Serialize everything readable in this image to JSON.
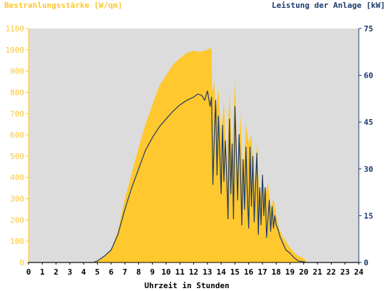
{
  "chart_data": {
    "type": "area",
    "title": "",
    "left_axis_label": "Bestrahlungsstärke [W/qm]",
    "right_axis_label": "Leistung der Anlage [kW]",
    "xlabel": "Uhrzeit in Stunden",
    "xlim": [
      0,
      24
    ],
    "x_ticks": [
      "0",
      "1",
      "2",
      "3",
      "4",
      "5",
      "6",
      "7",
      "8",
      "9",
      "10",
      "11",
      "12",
      "13",
      "14",
      "15",
      "16",
      "17",
      "18",
      "19",
      "20",
      "21",
      "22",
      "23",
      "24"
    ],
    "left_ylim": [
      0,
      1100
    ],
    "left_ticks": [
      "0",
      "100",
      "200",
      "300",
      "400",
      "500",
      "600",
      "700",
      "800",
      "900",
      "1000",
      "1100"
    ],
    "right_ylim": [
      0,
      75
    ],
    "right_ticks": [
      "0",
      "15",
      "30",
      "45",
      "60",
      "75"
    ],
    "grid": false,
    "colors": {
      "irradiance": "#ffc82e",
      "power": "#1c3a6e",
      "left_axis": "#ffc82e",
      "right_axis": "#1c3a6e",
      "plot_bg": "#dcdcdc"
    },
    "series": [
      {
        "name": "Bestrahlungsstärke [W/qm]",
        "axis": "left",
        "style": "area",
        "x": [
          0,
          4.6,
          5,
          5.5,
          6,
          6.5,
          7,
          7.5,
          8,
          8.5,
          9,
          9.5,
          10,
          10.5,
          11,
          11.5,
          12,
          12.5,
          13,
          13.3,
          13.35,
          13.5,
          13.6,
          13.8,
          14,
          14.2,
          14.4,
          14.6,
          14.8,
          15,
          15.2,
          15.4,
          15.6,
          15.8,
          16,
          16.2,
          16.4,
          16.6,
          16.8,
          17,
          17.2,
          17.4,
          17.6,
          17.8,
          18,
          18.2,
          18.5,
          19,
          19.5,
          20,
          20.2,
          20.4,
          24
        ],
        "y": [
          0,
          0,
          10,
          30,
          60,
          150,
          300,
          420,
          540,
          650,
          740,
          830,
          880,
          930,
          960,
          985,
          995,
          990,
          1000,
          1010,
          800,
          850,
          700,
          820,
          600,
          760,
          450,
          800,
          500,
          860,
          420,
          700,
          380,
          650,
          560,
          600,
          350,
          560,
          280,
          420,
          300,
          380,
          250,
          300,
          220,
          160,
          120,
          70,
          35,
          20,
          5,
          0,
          0
        ]
      },
      {
        "name": "Leistung der Anlage [kW]",
        "axis": "right",
        "style": "line",
        "x": [
          0,
          4.7,
          5,
          5.5,
          6,
          6.5,
          7,
          7.5,
          8,
          8.5,
          9,
          9.5,
          10,
          10.5,
          11,
          11.5,
          12,
          12.3,
          12.6,
          12.8,
          13,
          13.2,
          13.3,
          13.4,
          13.5,
          13.6,
          13.7,
          13.8,
          13.9,
          14,
          14.1,
          14.2,
          14.3,
          14.4,
          14.5,
          14.6,
          14.7,
          14.8,
          14.9,
          15,
          15.1,
          15.2,
          15.3,
          15.4,
          15.5,
          15.6,
          15.7,
          15.8,
          15.9,
          16,
          16.1,
          16.2,
          16.3,
          16.4,
          16.5,
          16.6,
          16.7,
          16.8,
          16.9,
          17,
          17.1,
          17.2,
          17.3,
          17.4,
          17.5,
          17.6,
          17.7,
          17.8,
          17.9,
          18,
          18.1,
          18.3,
          18.5,
          18.7,
          19,
          19.3,
          19.6,
          20,
          20.2,
          24
        ],
        "y": [
          0,
          0,
          0.5,
          2,
          4,
          9,
          17,
          24,
          30,
          36,
          40,
          43.5,
          46,
          48.5,
          50.5,
          52,
          53,
          54,
          53.5,
          52,
          55,
          50,
          53,
          25,
          40,
          52,
          28,
          47,
          35,
          22,
          44,
          26,
          39,
          28,
          14,
          46,
          22,
          38,
          14,
          50,
          36,
          20,
          41,
          30,
          12,
          33,
          17,
          37,
          22,
          11,
          37,
          18,
          34,
          13,
          25,
          35,
          9,
          24,
          12,
          28,
          15,
          24,
          8,
          14,
          20,
          10,
          18,
          11,
          15,
          12,
          11,
          8,
          6,
          4,
          3,
          1.5,
          0.5,
          0.2,
          0,
          0
        ]
      }
    ]
  }
}
